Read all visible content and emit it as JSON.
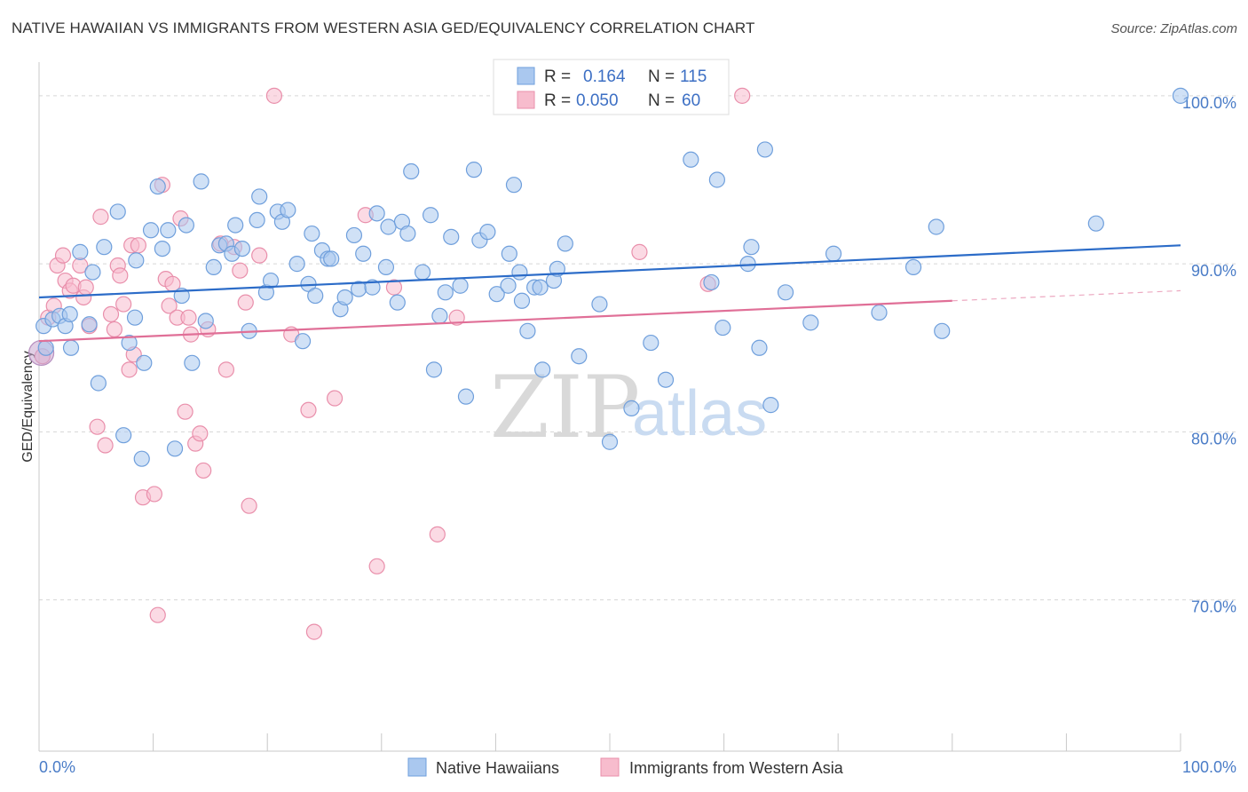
{
  "header": {
    "title": "NATIVE HAWAIIAN VS IMMIGRANTS FROM WESTERN ASIA GED/EQUIVALENCY CORRELATION CHART",
    "source": "Source: ZipAtlas.com"
  },
  "watermark": {
    "zip": "ZIP",
    "atlas": "atlas"
  },
  "legend": {
    "r_label": "R =",
    "n_label": "N =",
    "entries": [
      {
        "r": "0.164",
        "n": "115"
      },
      {
        "r": "0.050",
        "n": "60"
      }
    ]
  },
  "chart_data": {
    "type": "scatter",
    "title": "NATIVE HAWAIIAN VS IMMIGRANTS FROM WESTERN ASIA GED/EQUIVALENCY CORRELATION CHART",
    "xlabel": "",
    "ylabel": "GED/Equivalency",
    "xlim": [
      0,
      100
    ],
    "ylim": [
      61.0,
      102.0
    ],
    "x_tick_labels": [
      "0.0%",
      "100.0%"
    ],
    "y_ticks": [
      {
        "value": 100.0,
        "label": "100.0%"
      },
      {
        "value": 90.0,
        "label": "90.0%"
      },
      {
        "value": 80.0,
        "label": "80.0%"
      },
      {
        "value": 70.0,
        "label": "70.0%"
      }
    ],
    "grid": "horizontal dashed",
    "legend_position": "top-center",
    "colors": {
      "series1_fill": "#aac8ef",
      "series1_stroke": "#6f9fdc",
      "series1_line": "#2c6cc8",
      "series2_fill": "#f7bccd",
      "series2_stroke": "#e98fab",
      "series2_line": "#e06f97"
    },
    "series": [
      {
        "name": "Native Hawaiians",
        "trend": {
          "x0": 0,
          "y0": 88.0,
          "x1": 100,
          "y1": 91.1,
          "dashed_from": null
        },
        "points": [
          [
            0.4,
            86.3
          ],
          [
            0.6,
            85.0
          ],
          [
            1.2,
            86.7
          ],
          [
            1.8,
            86.9
          ],
          [
            2.3,
            86.3
          ],
          [
            2.8,
            85.0
          ],
          [
            2.7,
            87.0
          ],
          [
            3.6,
            90.7
          ],
          [
            4.4,
            86.4
          ],
          [
            4.7,
            89.5
          ],
          [
            5.2,
            82.9
          ],
          [
            5.7,
            91.0
          ],
          [
            6.9,
            93.1
          ],
          [
            7.4,
            79.8
          ],
          [
            7.9,
            85.3
          ],
          [
            8.4,
            86.8
          ],
          [
            8.5,
            90.2
          ],
          [
            9.0,
            78.4
          ],
          [
            9.2,
            84.1
          ],
          [
            9.8,
            92.0
          ],
          [
            10.4,
            94.6
          ],
          [
            10.8,
            90.9
          ],
          [
            11.3,
            92.0
          ],
          [
            11.9,
            79.0
          ],
          [
            12.5,
            88.1
          ],
          [
            12.9,
            92.3
          ],
          [
            13.4,
            84.1
          ],
          [
            14.2,
            94.9
          ],
          [
            14.6,
            86.6
          ],
          [
            15.3,
            89.8
          ],
          [
            15.8,
            91.1
          ],
          [
            16.4,
            91.2
          ],
          [
            16.9,
            90.6
          ],
          [
            17.2,
            92.3
          ],
          [
            17.8,
            90.9
          ],
          [
            18.4,
            86.0
          ],
          [
            19.1,
            92.6
          ],
          [
            19.3,
            94.0
          ],
          [
            19.9,
            88.3
          ],
          [
            20.3,
            89.0
          ],
          [
            20.9,
            93.1
          ],
          [
            21.3,
            92.5
          ],
          [
            21.8,
            93.2
          ],
          [
            22.6,
            90.0
          ],
          [
            23.1,
            85.4
          ],
          [
            23.6,
            88.8
          ],
          [
            23.9,
            91.8
          ],
          [
            24.2,
            88.1
          ],
          [
            24.8,
            90.8
          ],
          [
            25.3,
            90.3
          ],
          [
            25.6,
            90.3
          ],
          [
            26.4,
            87.3
          ],
          [
            26.8,
            88.0
          ],
          [
            27.6,
            91.7
          ],
          [
            28.0,
            88.5
          ],
          [
            28.4,
            90.6
          ],
          [
            29.2,
            88.6
          ],
          [
            29.6,
            93.0
          ],
          [
            30.4,
            89.8
          ],
          [
            30.6,
            92.2
          ],
          [
            31.4,
            87.7
          ],
          [
            31.8,
            92.5
          ],
          [
            32.3,
            91.8
          ],
          [
            32.6,
            95.5
          ],
          [
            33.6,
            89.5
          ],
          [
            34.3,
            92.9
          ],
          [
            34.6,
            83.7
          ],
          [
            35.1,
            86.9
          ],
          [
            35.6,
            88.3
          ],
          [
            36.1,
            91.6
          ],
          [
            36.9,
            88.7
          ],
          [
            37.4,
            82.1
          ],
          [
            38.1,
            95.6
          ],
          [
            38.6,
            91.4
          ],
          [
            39.3,
            91.9
          ],
          [
            40.1,
            88.2
          ],
          [
            41.1,
            88.7
          ],
          [
            41.2,
            90.6
          ],
          [
            41.6,
            94.7
          ],
          [
            42.3,
            87.8
          ],
          [
            42.1,
            89.5
          ],
          [
            42.8,
            86.0
          ],
          [
            43.4,
            88.6
          ],
          [
            43.9,
            88.6
          ],
          [
            44.1,
            83.7
          ],
          [
            45.1,
            89.0
          ],
          [
            45.4,
            89.7
          ],
          [
            46.1,
            91.2
          ],
          [
            47.3,
            84.5
          ],
          [
            49.1,
            87.6
          ],
          [
            50.0,
            79.4
          ],
          [
            51.9,
            81.4
          ],
          [
            53.6,
            85.3
          ],
          [
            54.9,
            83.1
          ],
          [
            57.1,
            96.2
          ],
          [
            58.9,
            88.9
          ],
          [
            59.4,
            95.0
          ],
          [
            59.9,
            86.2
          ],
          [
            62.1,
            90.0
          ],
          [
            62.4,
            91.0
          ],
          [
            63.1,
            85.0
          ],
          [
            63.6,
            96.8
          ],
          [
            64.1,
            81.6
          ],
          [
            65.4,
            88.3
          ],
          [
            67.6,
            86.5
          ],
          [
            69.6,
            90.6
          ],
          [
            73.6,
            87.1
          ],
          [
            76.6,
            89.8
          ],
          [
            78.6,
            92.2
          ],
          [
            79.1,
            86.0
          ],
          [
            92.6,
            92.4
          ],
          [
            100.0,
            100.0
          ]
        ]
      },
      {
        "name": "Immigrants from Western Asia",
        "trend": {
          "x0": 0,
          "y0": 85.4,
          "x1": 80,
          "y1": 87.8,
          "dashed_from": 80
        },
        "points": [
          [
            0.3,
            84.5
          ],
          [
            0.8,
            86.8
          ],
          [
            1.3,
            87.5
          ],
          [
            1.6,
            89.9
          ],
          [
            2.1,
            90.5
          ],
          [
            2.3,
            89.0
          ],
          [
            2.7,
            88.4
          ],
          [
            3.0,
            88.7
          ],
          [
            3.6,
            89.9
          ],
          [
            3.9,
            88.0
          ],
          [
            4.1,
            88.6
          ],
          [
            4.4,
            86.3
          ],
          [
            5.1,
            80.3
          ],
          [
            5.4,
            92.8
          ],
          [
            5.8,
            79.2
          ],
          [
            6.3,
            87.0
          ],
          [
            6.6,
            86.1
          ],
          [
            6.9,
            89.9
          ],
          [
            7.1,
            89.3
          ],
          [
            7.4,
            87.6
          ],
          [
            7.9,
            83.7
          ],
          [
            8.1,
            91.1
          ],
          [
            8.3,
            84.6
          ],
          [
            8.7,
            91.1
          ],
          [
            9.1,
            76.1
          ],
          [
            10.1,
            76.3
          ],
          [
            10.4,
            69.1
          ],
          [
            10.8,
            94.7
          ],
          [
            11.1,
            89.1
          ],
          [
            11.4,
            87.5
          ],
          [
            11.7,
            88.8
          ],
          [
            12.1,
            86.8
          ],
          [
            12.4,
            92.7
          ],
          [
            12.8,
            81.2
          ],
          [
            13.1,
            86.8
          ],
          [
            13.3,
            85.8
          ],
          [
            13.7,
            79.3
          ],
          [
            14.1,
            79.9
          ],
          [
            14.4,
            77.7
          ],
          [
            14.8,
            86.1
          ],
          [
            15.9,
            91.2
          ],
          [
            16.4,
            83.7
          ],
          [
            17.1,
            91.0
          ],
          [
            17.6,
            89.6
          ],
          [
            18.1,
            87.7
          ],
          [
            18.4,
            75.6
          ],
          [
            19.3,
            90.5
          ],
          [
            20.6,
            100.0
          ],
          [
            22.1,
            85.8
          ],
          [
            23.6,
            81.3
          ],
          [
            24.1,
            68.1
          ],
          [
            25.9,
            82.0
          ],
          [
            28.6,
            92.9
          ],
          [
            29.6,
            72.0
          ],
          [
            34.9,
            73.9
          ],
          [
            52.6,
            90.7
          ],
          [
            58.6,
            88.8
          ],
          [
            61.6,
            100.0
          ],
          [
            31.1,
            88.6
          ],
          [
            36.6,
            86.8
          ]
        ]
      }
    ]
  },
  "bottom_legend": [
    "Native Hawaiians",
    "Immigrants from Western Asia"
  ]
}
